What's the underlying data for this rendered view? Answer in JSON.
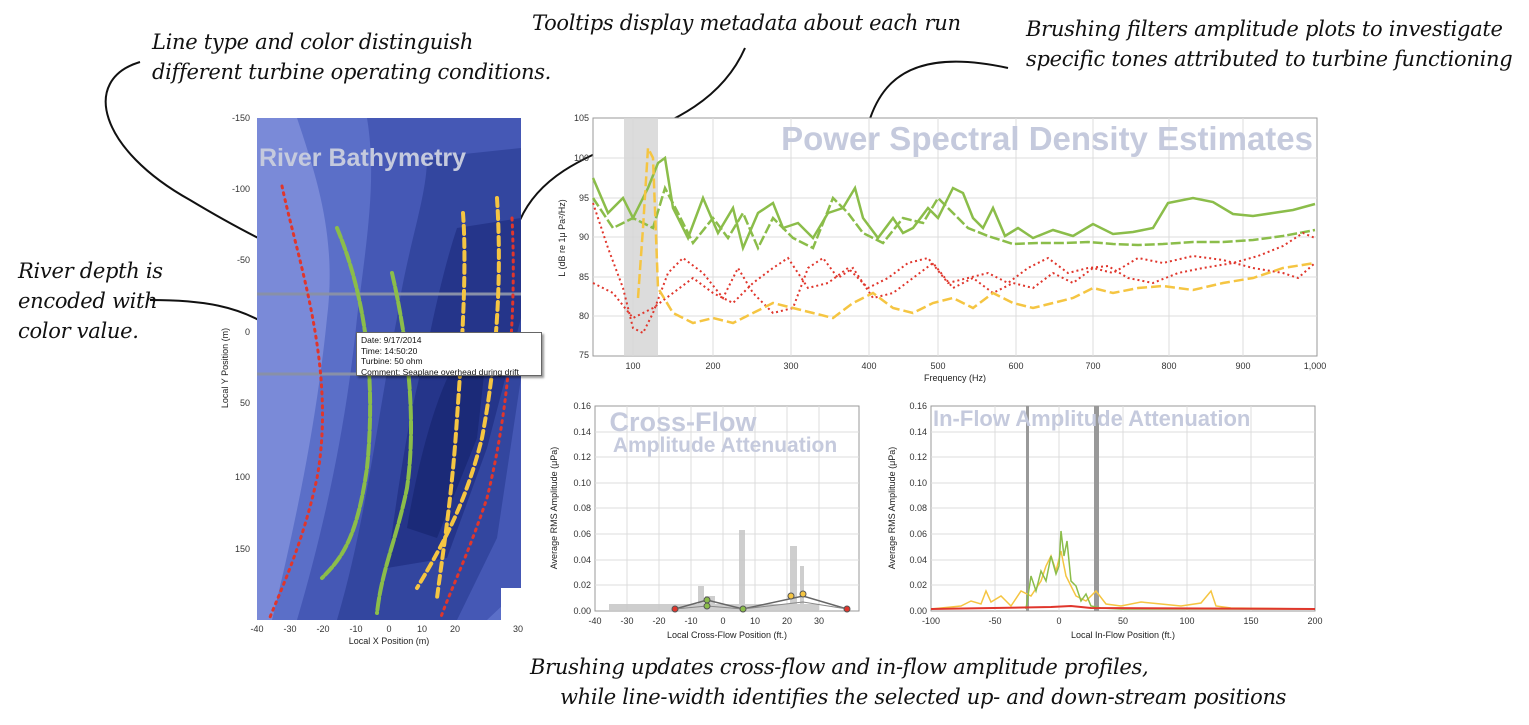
{
  "annotations": {
    "line_type": [
      "Line type and color distinguish",
      "different turbine operating conditions."
    ],
    "tooltips": "Tooltips display metadata about each run",
    "brushing_filters": [
      "Brushing filters amplitude plots to investigate",
      "specific tones attributed to turbine functioning"
    ],
    "river_depth": [
      "River depth is",
      "encoded with",
      "color value."
    ],
    "brushing_updates": [
      "Brushing updates cross-flow and in-flow amplitude profiles,",
      "while line-width identifies the selected up- and down-stream positions"
    ]
  },
  "bathymetry": {
    "title": "River Bathymetry",
    "xlabel": "Local X Position (m)",
    "ylabel": "Local Y Position (m)",
    "xticks": [
      "-40",
      "-30",
      "-20",
      "-10",
      "0",
      "10",
      "20",
      "30"
    ],
    "yticks": [
      "-150",
      "-100",
      "-50",
      "0",
      "50",
      "100",
      "150"
    ],
    "colors": [
      "#7a8ad8",
      "#5b6fc8",
      "#4558b5",
      "#33469f",
      "#25358a",
      "#1b2a78"
    ]
  },
  "tooltip": {
    "date": "Date: 9/17/2014",
    "time": "Time: 14:50:20",
    "turbine": "Turbine: 50 ohm",
    "comment": "Comment: Seaplane overhead during drift"
  },
  "psd": {
    "title": "Power Spectral Density Estimates",
    "xlabel": "Frequency (Hz)",
    "ylabel": "L (dB re 1μ Pa²/Hz)",
    "xticks": [
      "100",
      "200",
      "300",
      "400",
      "500",
      "600",
      "700",
      "800",
      "900",
      "1,000"
    ],
    "yticks": [
      "105",
      "100",
      "95",
      "90",
      "85",
      "80",
      "75"
    ],
    "brush": [
      80,
      125
    ]
  },
  "crossflow": {
    "title_line1": "Cross-Flow",
    "title_line2": "Amplitude Attenuation",
    "xlabel": "Local Cross-Flow Position (ft.)",
    "ylabel": "Average RMS Amplitude (μPa)",
    "xticks": [
      "-40",
      "-30",
      "-20",
      "-10",
      "0",
      "10",
      "20",
      "30"
    ],
    "yticks": [
      "0.16",
      "0.14",
      "0.12",
      "0.10",
      "0.08",
      "0.06",
      "0.04",
      "0.02",
      "0.00"
    ]
  },
  "inflow": {
    "title": "In-Flow Amplitude Attenuation",
    "xlabel": "Local In-Flow Position (ft.)",
    "ylabel": "Average RMS Amplitude (μPa)",
    "xticks": [
      "-100",
      "-50",
      "0",
      "50",
      "100",
      "150",
      "200"
    ],
    "yticks": [
      "0.16",
      "0.14",
      "0.12",
      "0.10",
      "0.08",
      "0.06",
      "0.04",
      "0.02",
      "0.00"
    ]
  },
  "series_colors": {
    "green": "#8bbd4a",
    "red": "#e0362c",
    "yellow": "#f5c542",
    "gray": "#c9c9c9"
  }
}
